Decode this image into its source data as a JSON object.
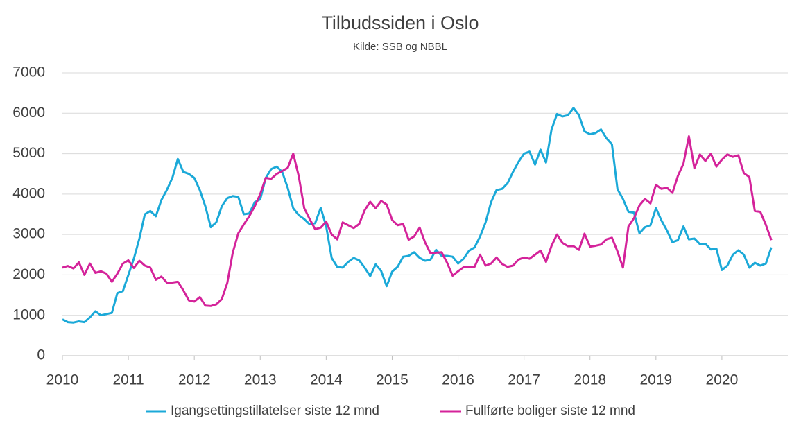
{
  "chart_data": {
    "type": "line",
    "title": "Tilbudssiden i Oslo",
    "subtitle": "Kilde: SSB og NBBL",
    "x": [
      2010,
      2010.083,
      2010.167,
      2010.25,
      2010.333,
      2010.417,
      2010.5,
      2010.583,
      2010.667,
      2010.75,
      2010.833,
      2010.917,
      2011,
      2011.083,
      2011.167,
      2011.25,
      2011.333,
      2011.417,
      2011.5,
      2011.583,
      2011.667,
      2011.75,
      2011.833,
      2011.917,
      2012,
      2012.083,
      2012.167,
      2012.25,
      2012.333,
      2012.417,
      2012.5,
      2012.583,
      2012.667,
      2012.75,
      2012.833,
      2012.917,
      2013,
      2013.083,
      2013.167,
      2013.25,
      2013.333,
      2013.417,
      2013.5,
      2013.583,
      2013.667,
      2013.75,
      2013.833,
      2013.917,
      2014,
      2014.083,
      2014.167,
      2014.25,
      2014.333,
      2014.417,
      2014.5,
      2014.583,
      2014.667,
      2014.75,
      2014.833,
      2014.917,
      2015,
      2015.083,
      2015.167,
      2015.25,
      2015.333,
      2015.417,
      2015.5,
      2015.583,
      2015.667,
      2015.75,
      2015.833,
      2015.917,
      2016,
      2016.083,
      2016.167,
      2016.25,
      2016.333,
      2016.417,
      2016.5,
      2016.583,
      2016.667,
      2016.75,
      2016.833,
      2016.917,
      2017,
      2017.083,
      2017.167,
      2017.25,
      2017.333,
      2017.417,
      2017.5,
      2017.583,
      2017.667,
      2017.75,
      2017.833,
      2017.917,
      2018,
      2018.083,
      2018.167,
      2018.25,
      2018.333,
      2018.417,
      2018.5,
      2018.583,
      2018.667,
      2018.75,
      2018.833,
      2018.917,
      2019,
      2019.083,
      2019.167,
      2019.25,
      2019.333,
      2019.417,
      2019.5,
      2019.583,
      2019.667,
      2019.75,
      2019.833,
      2019.917,
      2020,
      2020.083,
      2020.167,
      2020.25,
      2020.333,
      2020.417,
      2020.5,
      2020.583,
      2020.667,
      2020.75
    ],
    "series": [
      {
        "name": "Igangsettingstillatelser siste 12 mnd",
        "color": "#1ba9d8",
        "values": [
          900,
          830,
          820,
          850,
          830,
          950,
          1100,
          1000,
          1030,
          1060,
          1550,
          1600,
          2000,
          2400,
          2900,
          3500,
          3580,
          3450,
          3850,
          4100,
          4400,
          4870,
          4550,
          4500,
          4400,
          4100,
          3700,
          3180,
          3300,
          3700,
          3900,
          3950,
          3930,
          3500,
          3520,
          3800,
          3870,
          4400,
          4620,
          4680,
          4550,
          4150,
          3650,
          3480,
          3380,
          3250,
          3280,
          3660,
          3200,
          2420,
          2200,
          2180,
          2320,
          2420,
          2360,
          2180,
          1970,
          2260,
          2100,
          1720,
          2080,
          2200,
          2450,
          2470,
          2560,
          2420,
          2350,
          2380,
          2620,
          2470,
          2470,
          2450,
          2280,
          2400,
          2600,
          2680,
          2950,
          3300,
          3800,
          4100,
          4130,
          4270,
          4550,
          4800,
          5000,
          5050,
          4730,
          5100,
          4780,
          5600,
          5980,
          5920,
          5950,
          6130,
          5950,
          5550,
          5480,
          5510,
          5600,
          5380,
          5230,
          4120,
          3880,
          3560,
          3540,
          3030,
          3180,
          3230,
          3650,
          3350,
          3100,
          2810,
          2860,
          3200,
          2880,
          2900,
          2760,
          2770,
          2630,
          2650,
          2120,
          2230,
          2500,
          2610,
          2500,
          2180,
          2300,
          2230,
          2280,
          2680
        ]
      },
      {
        "name": "Fullførte boliger siste 12 mnd",
        "color": "#d4239a",
        "values": [
          2180,
          2220,
          2160,
          2310,
          2000,
          2280,
          2050,
          2090,
          2030,
          1830,
          2030,
          2280,
          2360,
          2170,
          2350,
          2230,
          2180,
          1880,
          1960,
          1810,
          1810,
          1830,
          1620,
          1370,
          1340,
          1450,
          1240,
          1230,
          1270,
          1400,
          1800,
          2550,
          3030,
          3250,
          3450,
          3700,
          4000,
          4400,
          4380,
          4500,
          4570,
          4650,
          5000,
          4450,
          3650,
          3380,
          3130,
          3170,
          3320,
          3000,
          2880,
          3300,
          3230,
          3160,
          3260,
          3600,
          3810,
          3650,
          3830,
          3740,
          3360,
          3230,
          3260,
          2870,
          2950,
          3170,
          2800,
          2530,
          2550,
          2560,
          2300,
          1980,
          2090,
          2190,
          2200,
          2200,
          2500,
          2230,
          2280,
          2430,
          2270,
          2200,
          2230,
          2380,
          2430,
          2400,
          2500,
          2600,
          2320,
          2720,
          3000,
          2790,
          2710,
          2710,
          2620,
          3020,
          2700,
          2720,
          2750,
          2880,
          2920,
          2580,
          2180,
          3200,
          3400,
          3720,
          3880,
          3770,
          4230,
          4130,
          4160,
          4030,
          4450,
          4750,
          5430,
          4640,
          4980,
          4820,
          5000,
          4680,
          4850,
          4980,
          4920,
          4960,
          4520,
          4420,
          3580,
          3560,
          3240,
          2860
        ]
      }
    ],
    "xlim": [
      2010,
      2021
    ],
    "xticks": [
      2010,
      2011,
      2012,
      2013,
      2014,
      2015,
      2016,
      2017,
      2018,
      2019,
      2020
    ],
    "ylim": [
      0,
      7000
    ],
    "yticks": [
      0,
      1000,
      2000,
      3000,
      4000,
      5000,
      6000,
      7000
    ],
    "grid": true,
    "legend": "bottom"
  }
}
